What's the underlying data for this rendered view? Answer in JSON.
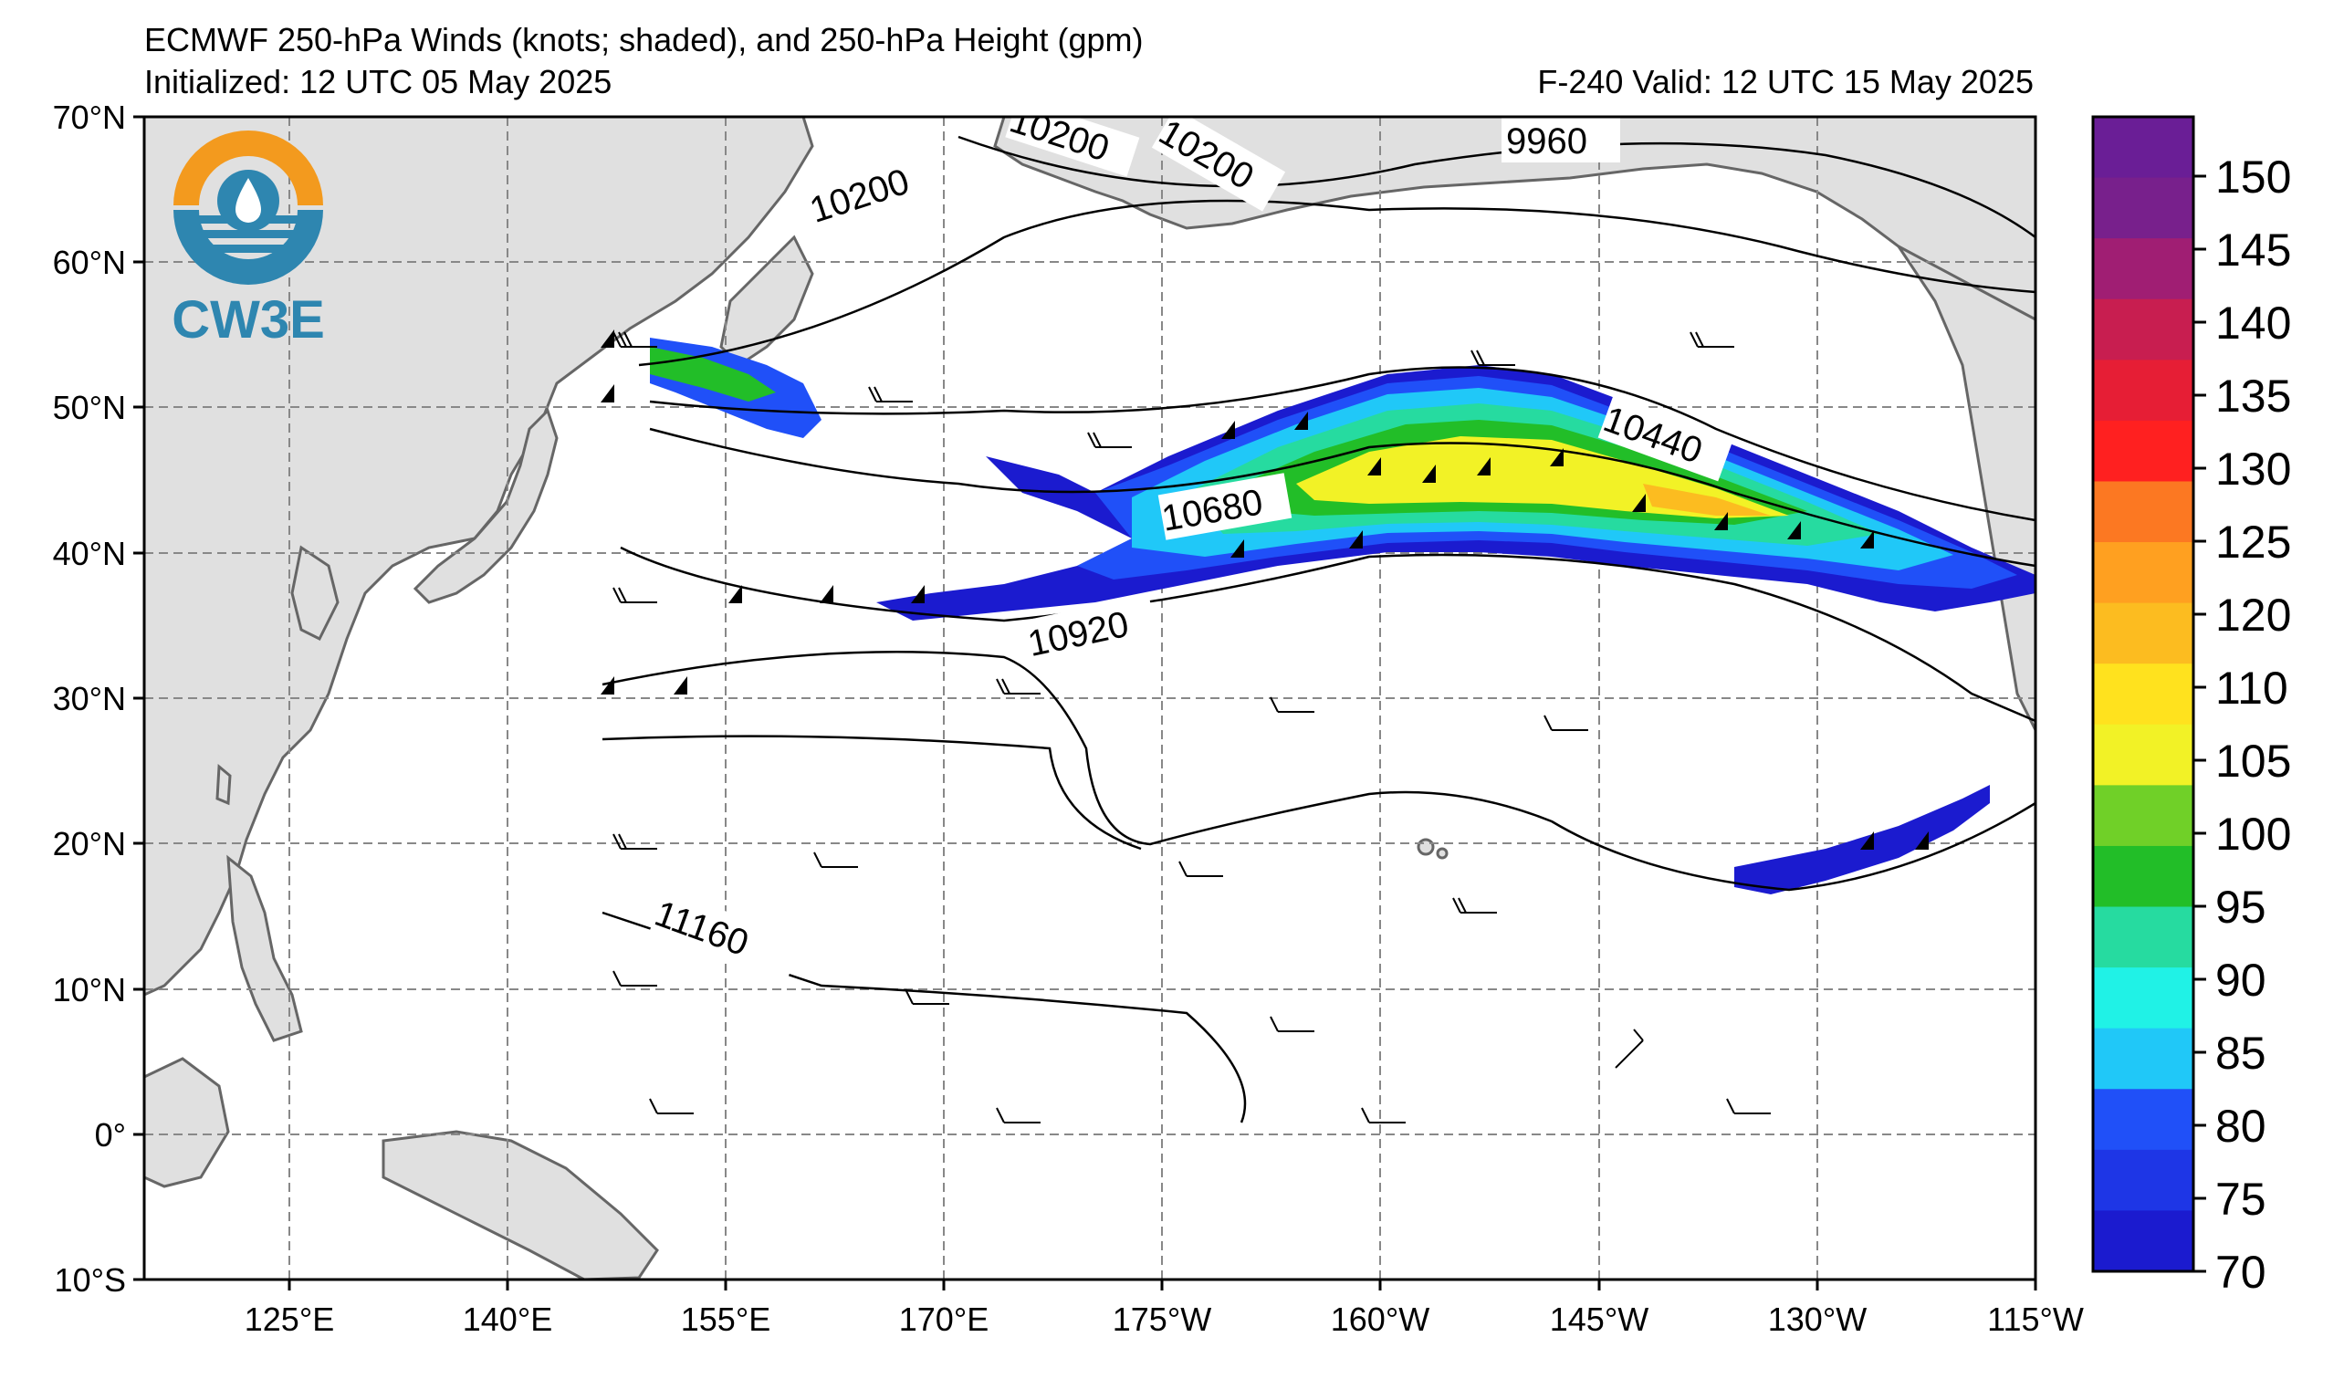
{
  "header": {
    "title_line1": "ECMWF 250-hPa Winds (knots; shaded), and 250-hPa Height (gpm)",
    "title_line2_left": "Initialized: 12 UTC 05 May 2025",
    "title_line2_right": "F-240  Valid: 12 UTC 15 May 2025"
  },
  "logo": {
    "text": "CW3E",
    "colors": {
      "orange": "#F39A1E",
      "teal": "#2E86B0"
    }
  },
  "map": {
    "lat_labels": [
      "70°N",
      "60°N",
      "50°N",
      "40°N",
      "30°N",
      "20°N",
      "10°N",
      "0°",
      "10°S"
    ],
    "lon_labels": [
      "125°E",
      "140°E",
      "155°E",
      "170°E",
      "175°W",
      "160°W",
      "145°W",
      "130°W",
      "115°W"
    ],
    "contour_labels": [
      "10200",
      "10200",
      "10200",
      "9960",
      "10440",
      "10680",
      "10920",
      "11160"
    ],
    "land_color": "#E0E0E0",
    "coast_color": "#666666"
  },
  "colorbar": {
    "ticks": [
      "70",
      "75",
      "80",
      "85",
      "90",
      "95",
      "100",
      "105",
      "110",
      "120",
      "125",
      "130",
      "135",
      "140",
      "145",
      "150"
    ],
    "colors": [
      "#1B1BCF",
      "#1E36E6",
      "#2050F8",
      "#20C8F8",
      "#20F2E6",
      "#26DBA0",
      "#22BE28",
      "#70D028",
      "#F2F226",
      "#FFE21E",
      "#FCBC20",
      "#FFA020",
      "#FC7822",
      "#FF2020",
      "#E61E35",
      "#C81E50",
      "#A01E73",
      "#78208C",
      "#6A1E96"
    ]
  }
}
